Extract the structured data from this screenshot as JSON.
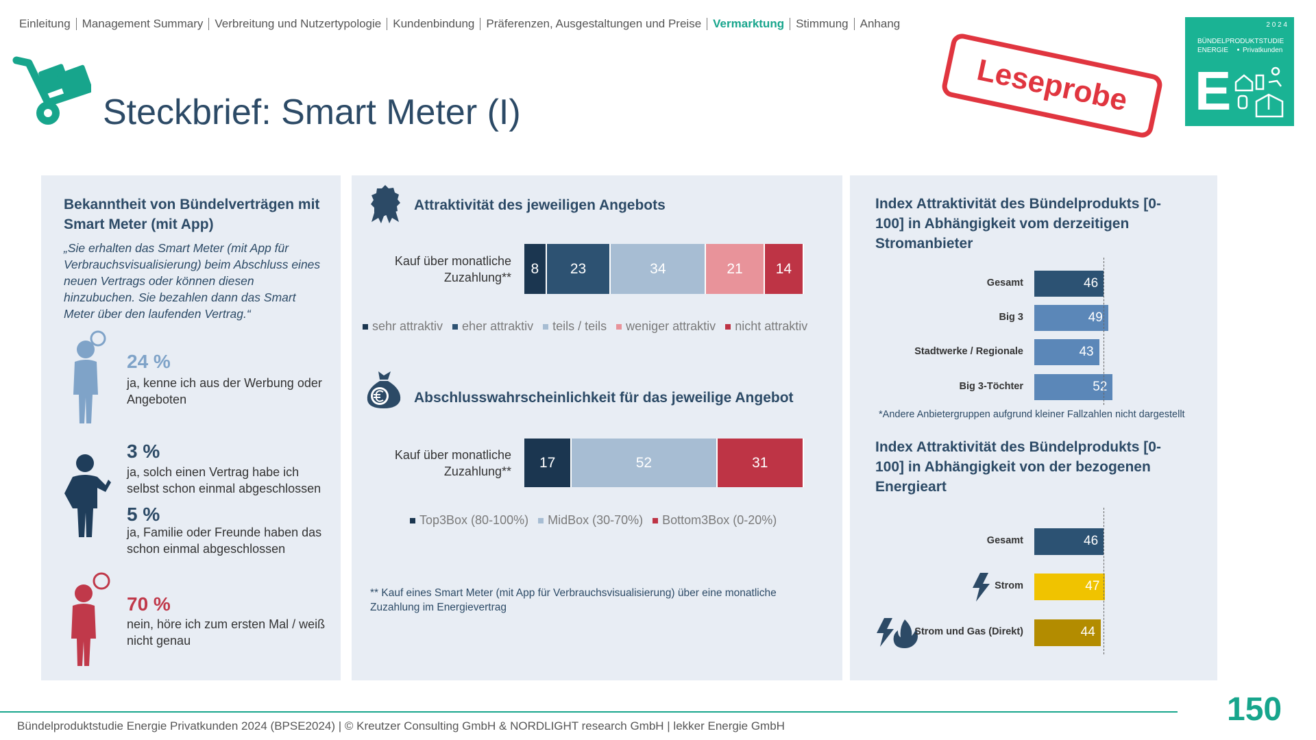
{
  "nav": {
    "items": [
      "Einleitung",
      "Management Summary",
      "Verbreitung und Nutzertypologie",
      "Kundenbindung",
      "Präferenzen, Ausgestaltungen und Preise",
      "Vermarktung",
      "Stimmung",
      "Anhang"
    ],
    "active_index": 5
  },
  "header": {
    "title": "Steckbrief: Smart Meter (I)",
    "stamp": "Leseprobe",
    "logo": {
      "year": "2 0 2 4",
      "line1": "BÜNDELPRODUKTSTUDIE",
      "line2": "ENERGIE",
      "line3": "Privatkunden",
      "letter": "E"
    }
  },
  "left_panel": {
    "title": "Bekanntheit von Bündelverträgen mit Smart Meter (mit App)",
    "quote": "„Sie erhalten das Smart Meter (mit App für Verbrauchsvisualisierung) beim Abschluss eines neuen Vertrags oder können diesen hinzubuchen. Sie bezahlen dann das Smart Meter über den laufenden Vertrag.“",
    "items": [
      {
        "percent": "24 %",
        "text": "ja, kenne ich aus der Werbung oder Angeboten",
        "color": "#7fa3c8"
      },
      {
        "percent": "3 %",
        "text": "ja, solch einen Vertrag habe ich selbst schon einmal abgeschlossen",
        "color": "#2c4a66"
      },
      {
        "percent": "5 %",
        "text": "ja, Familie oder Freunde haben das schon einmal abgeschlossen",
        "color": "#2c4a66"
      },
      {
        "percent": "70 %",
        "text": "nein, höre ich zum ersten Mal / weiß nicht genau",
        "color": "#c0394a"
      }
    ]
  },
  "chart_data": [
    {
      "type": "stacked-bar",
      "title": "Attraktivität des jeweiligen Angebots",
      "categories": [
        "Kauf über monatliche Zuzahlung**"
      ],
      "series": [
        {
          "name": "sehr attraktiv",
          "color": "#1b3650",
          "values": [
            8
          ]
        },
        {
          "name": "eher attraktiv",
          "color": "#2d5272",
          "values": [
            23
          ]
        },
        {
          "name": "teils / teils",
          "color": "#a7bdd3",
          "values": [
            34
          ]
        },
        {
          "name": "weniger attraktiv",
          "color": "#e8939a",
          "values": [
            21
          ]
        },
        {
          "name": "nicht attraktiv",
          "color": "#be3445",
          "values": [
            14
          ]
        }
      ]
    },
    {
      "type": "stacked-bar",
      "title": "Abschlusswahrscheinlichkeit für das jeweilige Angebot",
      "categories": [
        "Kauf über monatliche Zuzahlung**"
      ],
      "series": [
        {
          "name": "Top3Box (80-100%)",
          "color": "#1b3650",
          "values": [
            17
          ]
        },
        {
          "name": "MidBox (30-70%)",
          "color": "#a7bdd3",
          "values": [
            52
          ]
        },
        {
          "name": "Bottom3Box (0-20%)",
          "color": "#be3445",
          "values": [
            31
          ]
        }
      ],
      "footnote": "** Kauf eines Smart Meter (mit App für Verbrauchsvisualisierung) über eine monatliche Zuzahlung im Energievertrag"
    },
    {
      "type": "hbar",
      "title": "Index Attraktivität des Bündelprodukts [0-100] in Abhängigkeit vom derzeitigen Stromanbieter",
      "categories": [
        "Gesamt",
        "Big 3",
        "Stadtwerke / Regionale",
        "Big 3-Töchter"
      ],
      "values": [
        46,
        49,
        43,
        52
      ],
      "colors": [
        "#2c5273",
        "#5b87b8",
        "#5b87b8",
        "#5b87b8"
      ],
      "footnote": "*Andere Anbietergruppen aufgrund kleiner Fallzahlen nicht dargestellt"
    },
    {
      "type": "hbar",
      "title": "Index Attraktivität des Bündelprodukts [0-100] in Abhängigkeit von der bezogenen Energieart",
      "categories": [
        "Gesamt",
        "Strom",
        "Strom und Gas (Direkt)"
      ],
      "values": [
        46,
        47,
        44
      ],
      "colors": [
        "#2c5273",
        "#f0c300",
        "#b38c00"
      ]
    }
  ],
  "footer": {
    "text": "Bündelproduktstudie Energie Privatkunden 2024 (BPSE2024) | © Kreutzer Consulting GmbH & NORDLIGHT research GmbH | lekker Energie GmbH",
    "page": "150"
  }
}
